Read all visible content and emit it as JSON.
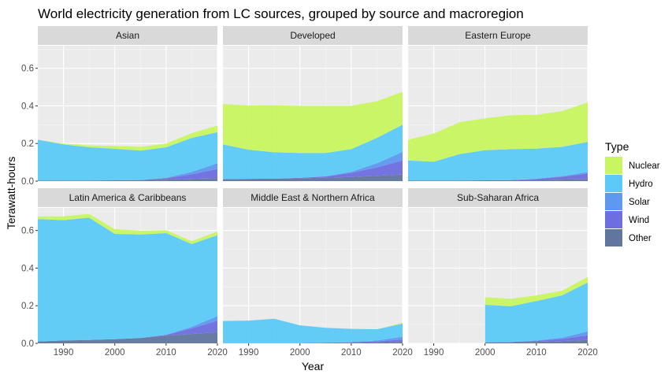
{
  "chart_data": {
    "type": "area",
    "stacked": true,
    "title": "World electricity generation from LC sources, grouped by source and macroregion",
    "xlabel": "Year",
    "ylabel": "Terawatt-hours",
    "xlim": [
      1985,
      2020
    ],
    "ylim": [
      0,
      0.72
    ],
    "x_ticks": [
      1990,
      2000,
      2010,
      2020
    ],
    "y_ticks": [
      0.0,
      0.2,
      0.4,
      0.6
    ],
    "y_tick_labels": [
      "0.0",
      "0.2",
      "0.4",
      "0.6"
    ],
    "grid": true,
    "legend": {
      "title": "Type",
      "placement": "right",
      "entries": [
        {
          "name": "Nuclear",
          "color": "#c8f560"
        },
        {
          "name": "Hydro",
          "color": "#5ccaf7"
        },
        {
          "name": "Solar",
          "color": "#5f98ef"
        },
        {
          "name": "Wind",
          "color": "#6e6ee0"
        },
        {
          "name": "Other",
          "color": "#60769e"
        }
      ]
    },
    "stack_order": [
      "Other",
      "Wind",
      "Solar",
      "Hydro",
      "Nuclear"
    ],
    "x": [
      1985,
      1990,
      1995,
      2000,
      2005,
      2010,
      2015,
      2020
    ],
    "panels": [
      {
        "name": "Asian",
        "series": {
          "Other": [
            0.003,
            0.003,
            0.003,
            0.004,
            0.005,
            0.008,
            0.012,
            0.015
          ],
          "Wind": [
            0,
            0,
            0,
            0,
            0.001,
            0.008,
            0.025,
            0.05
          ],
          "Solar": [
            0,
            0,
            0,
            0,
            0,
            0.002,
            0.012,
            0.03
          ],
          "Hydro": [
            0.217,
            0.192,
            0.177,
            0.168,
            0.156,
            0.162,
            0.181,
            0.165
          ],
          "Nuclear": [
            0,
            0.005,
            0.01,
            0.015,
            0.02,
            0.02,
            0.025,
            0.035
          ]
        }
      },
      {
        "name": "Developed",
        "series": {
          "Other": [
            0.01,
            0.012,
            0.013,
            0.015,
            0.018,
            0.022,
            0.028,
            0.035
          ],
          "Wind": [
            0,
            0,
            0,
            0.002,
            0.007,
            0.022,
            0.045,
            0.075
          ],
          "Solar": [
            0,
            0,
            0,
            0,
            0.001,
            0.006,
            0.022,
            0.045
          ],
          "Hydro": [
            0.185,
            0.155,
            0.14,
            0.133,
            0.124,
            0.12,
            0.135,
            0.145
          ],
          "Nuclear": [
            0.215,
            0.235,
            0.25,
            0.25,
            0.25,
            0.23,
            0.195,
            0.175
          ]
        }
      },
      {
        "name": "Eastern Europe",
        "series": {
          "Other": [
            0.003,
            0.003,
            0.003,
            0.004,
            0.004,
            0.006,
            0.008,
            0.01
          ],
          "Wind": [
            0,
            0,
            0,
            0,
            0.001,
            0.006,
            0.015,
            0.03
          ],
          "Solar": [
            0,
            0,
            0,
            0,
            0,
            0.001,
            0.004,
            0.008
          ],
          "Hydro": [
            0.107,
            0.1,
            0.14,
            0.16,
            0.165,
            0.16,
            0.155,
            0.16
          ],
          "Nuclear": [
            0.11,
            0.15,
            0.17,
            0.17,
            0.18,
            0.18,
            0.19,
            0.21
          ]
        }
      },
      {
        "name": "Latin America & Caribbeans",
        "series": {
          "Other": [
            0.01,
            0.015,
            0.018,
            0.022,
            0.028,
            0.04,
            0.05,
            0.06
          ],
          "Wind": [
            0,
            0,
            0,
            0,
            0.001,
            0.005,
            0.03,
            0.06
          ],
          "Solar": [
            0,
            0,
            0,
            0,
            0,
            0.001,
            0.008,
            0.025
          ],
          "Hydro": [
            0.65,
            0.64,
            0.65,
            0.56,
            0.55,
            0.54,
            0.44,
            0.43
          ],
          "Nuclear": [
            0.015,
            0.02,
            0.02,
            0.025,
            0.02,
            0.015,
            0.015,
            0.02
          ]
        }
      },
      {
        "name": "Middle East & Northern Africa",
        "series": {
          "Other": [
            0.001,
            0.001,
            0.001,
            0.001,
            0.002,
            0.003,
            0.005,
            0.008
          ],
          "Wind": [
            0,
            0,
            0,
            0,
            0.001,
            0.003,
            0.006,
            0.012
          ],
          "Solar": [
            0,
            0,
            0,
            0,
            0,
            0.001,
            0.004,
            0.015
          ],
          "Hydro": [
            0.118,
            0.12,
            0.13,
            0.095,
            0.08,
            0.07,
            0.06,
            0.07
          ],
          "Nuclear": [
            0,
            0,
            0,
            0,
            0,
            0,
            0,
            0.005
          ]
        }
      },
      {
        "name": "Sub-Saharan Africa",
        "series": {
          "Other": [
            null,
            null,
            null,
            0.005,
            0.006,
            0.008,
            0.012,
            0.018
          ],
          "Wind": [
            null,
            null,
            null,
            0,
            0.001,
            0.005,
            0.012,
            0.025
          ],
          "Solar": [
            null,
            null,
            null,
            0,
            0,
            0.002,
            0.006,
            0.02
          ],
          "Hydro": [
            null,
            null,
            null,
            0.2,
            0.19,
            0.21,
            0.225,
            0.26
          ],
          "Nuclear": [
            null,
            null,
            null,
            0.04,
            0.04,
            0.03,
            0.025,
            0.03
          ]
        }
      }
    ]
  }
}
